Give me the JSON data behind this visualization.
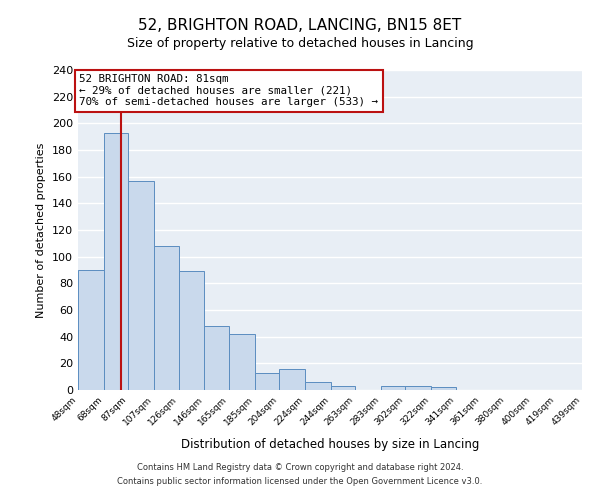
{
  "title": "52, BRIGHTON ROAD, LANCING, BN15 8ET",
  "subtitle": "Size of property relative to detached houses in Lancing",
  "xlabel": "Distribution of detached houses by size in Lancing",
  "ylabel": "Number of detached properties",
  "bin_edges": [
    48,
    68,
    87,
    107,
    126,
    146,
    165,
    185,
    204,
    224,
    244,
    263,
    283,
    302,
    322,
    341,
    361,
    380,
    400,
    419,
    439
  ],
  "bar_heights": [
    90,
    193,
    157,
    108,
    89,
    48,
    42,
    13,
    16,
    6,
    3,
    0,
    3,
    3,
    2,
    0,
    0,
    0,
    0,
    0
  ],
  "bar_facecolor": "#c9d9ec",
  "bar_edgecolor": "#5b8dc0",
  "red_line_x": 81,
  "red_line_color": "#bb1111",
  "annotation_line1": "52 BRIGHTON ROAD: 81sqm",
  "annotation_line2": "← 29% of detached houses are smaller (221)",
  "annotation_line3": "70% of semi-detached houses are larger (533) →",
  "annotation_box_facecolor": "white",
  "annotation_box_edgecolor": "#bb1111",
  "ylim": [
    0,
    240
  ],
  "yticks": [
    0,
    20,
    40,
    60,
    80,
    100,
    120,
    140,
    160,
    180,
    200,
    220,
    240
  ],
  "bg_color": "#e8eef5",
  "grid_color": "white",
  "footnote1": "Contains HM Land Registry data © Crown copyright and database right 2024.",
  "footnote2": "Contains public sector information licensed under the Open Government Licence v3.0."
}
